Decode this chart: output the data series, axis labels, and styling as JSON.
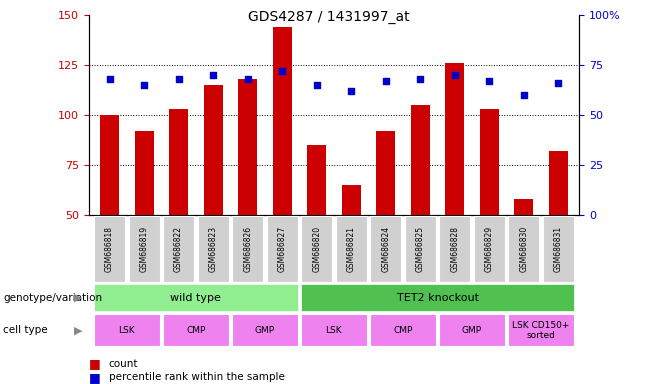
{
  "title": "GDS4287 / 1431997_at",
  "samples": [
    "GSM686818",
    "GSM686819",
    "GSM686822",
    "GSM686823",
    "GSM686826",
    "GSM686827",
    "GSM686820",
    "GSM686821",
    "GSM686824",
    "GSM686825",
    "GSM686828",
    "GSM686829",
    "GSM686830",
    "GSM686831"
  ],
  "bar_values": [
    100,
    92,
    103,
    115,
    118,
    144,
    85,
    65,
    92,
    105,
    126,
    103,
    58,
    82
  ],
  "dot_values": [
    68,
    65,
    68,
    70,
    68,
    72,
    65,
    62,
    67,
    68,
    70,
    67,
    60,
    66
  ],
  "ylim_left": [
    50,
    150
  ],
  "ylim_right": [
    0,
    100
  ],
  "left_ticks": [
    50,
    75,
    100,
    125,
    150
  ],
  "right_ticks": [
    0,
    25,
    50,
    75,
    100
  ],
  "bar_color": "#cc0000",
  "dot_color": "#0000cc",
  "label_bg": "#d0d0d0",
  "genotype_wt_color": "#90ee90",
  "genotype_ko_color": "#50c050",
  "cell_type_color": "#ee82ee",
  "genotype_label": "genotype/variation",
  "cell_type_label": "cell type",
  "wt_label": "wild type",
  "ko_label": "TET2 knockout",
  "cell_groups": [
    {
      "label": "LSK",
      "start": 0,
      "end": 2
    },
    {
      "label": "CMP",
      "start": 2,
      "end": 4
    },
    {
      "label": "GMP",
      "start": 4,
      "end": 6
    },
    {
      "label": "LSK",
      "start": 6,
      "end": 8
    },
    {
      "label": "CMP",
      "start": 8,
      "end": 10
    },
    {
      "label": "GMP",
      "start": 10,
      "end": 12
    },
    {
      "label": "LSK CD150+\nsorted",
      "start": 12,
      "end": 14
    }
  ],
  "legend_count_label": "count",
  "legend_pct_label": "percentile rank within the sample"
}
